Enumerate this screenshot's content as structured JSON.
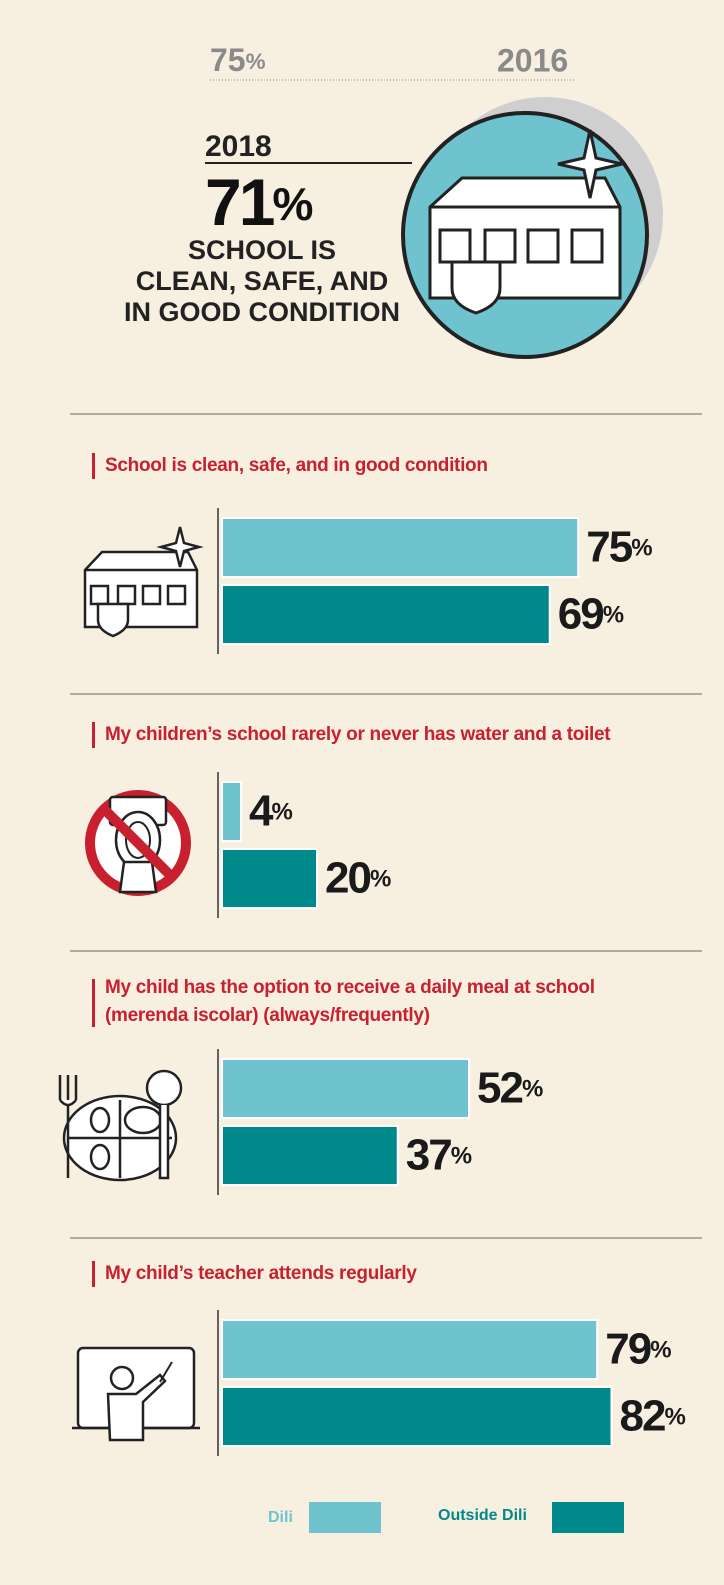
{
  "header": {
    "prior_value": "75%",
    "prior_year": "2016",
    "year": "2018",
    "value": "71%",
    "caption": [
      "SCHOOL IS",
      "CLEAN, SAFE, AND",
      "IN GOOD CONDITION"
    ]
  },
  "chart_data": [
    {
      "type": "bar",
      "title": "School is clean, safe, and in good condition",
      "xlim": [
        0,
        100
      ],
      "series": [
        {
          "name": "Dili",
          "color": "#6fc3cf",
          "values": [
            75
          ],
          "value_labels": [
            "75%"
          ]
        },
        {
          "name": "Outside Dili",
          "color": "#00898a",
          "values": [
            69
          ],
          "value_labels": [
            "69%"
          ]
        }
      ]
    },
    {
      "type": "bar",
      "title": "My children’s school rarely or never has water and a toilet",
      "xlim": [
        0,
        100
      ],
      "series": [
        {
          "name": "Dili",
          "color": "#6fc3cf",
          "values": [
            4
          ],
          "value_labels": [
            "4%"
          ]
        },
        {
          "name": "Outside Dili",
          "color": "#00898a",
          "values": [
            20
          ],
          "value_labels": [
            "20%"
          ]
        }
      ]
    },
    {
      "type": "bar",
      "title": "My child has the option to receive a daily meal at school (merenda iscolar) (always/frequently)",
      "xlim": [
        0,
        100
      ],
      "series": [
        {
          "name": "Dili",
          "color": "#6fc3cf",
          "values": [
            52
          ],
          "value_labels": [
            "52%"
          ]
        },
        {
          "name": "Outside Dili",
          "color": "#00898a",
          "values": [
            37
          ],
          "value_labels": [
            "37%"
          ]
        }
      ]
    },
    {
      "type": "bar",
      "title": "My child’s teacher attends regularly",
      "xlim": [
        0,
        100
      ],
      "series": [
        {
          "name": "Dili",
          "color": "#6fc3cf",
          "values": [
            79
          ],
          "value_labels": [
            "79%"
          ]
        },
        {
          "name": "Outside Dili",
          "color": "#00898a",
          "values": [
            82
          ],
          "value_labels": [
            "82%"
          ]
        }
      ]
    }
  ]
}
